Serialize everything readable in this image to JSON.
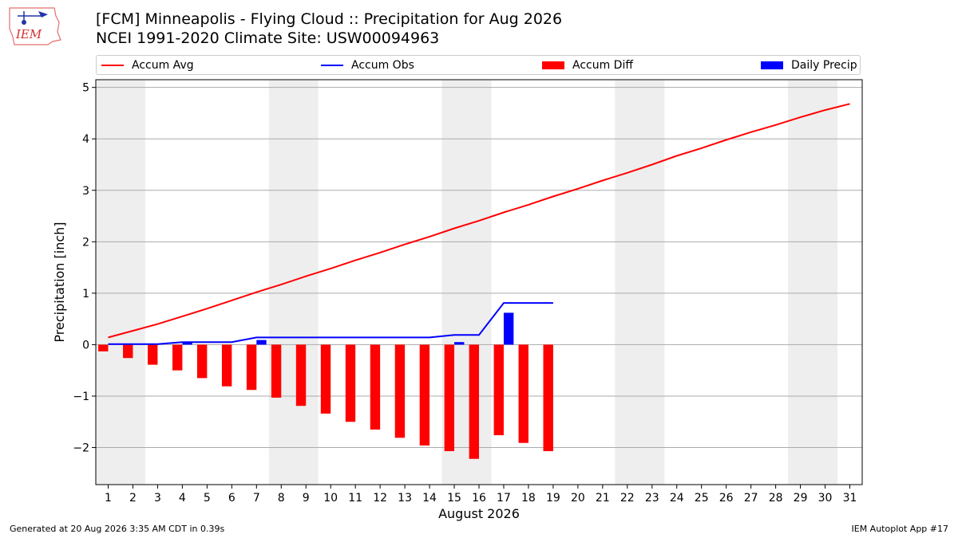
{
  "header": {
    "line1": "[FCM] Minneapolis - Flying Cloud :: Precipitation for Aug 2026",
    "line2": "NCEI 1991-2020 Climate Site: USW00094963"
  },
  "logo": {
    "text": "IEM"
  },
  "footer": {
    "left": "Generated at 20 Aug 2026 3:35 AM CDT in 0.39s",
    "right": "IEM Autoplot App #17"
  },
  "colors": {
    "avg": "#ff0000",
    "obs": "#0000ff",
    "diff": "#ff0000",
    "daily": "#0000ff",
    "weekend_band": "#eeeeee",
    "grid": "#aaaaaa"
  },
  "chart_data": {
    "type": "bar",
    "xlabel": "August 2026",
    "ylabel": "Precipitation [inch]",
    "xlim": [
      0.5,
      31.5
    ],
    "ylim": [
      -2.72,
      5.15
    ],
    "yticks": [
      -2,
      -1,
      0,
      1,
      2,
      3,
      4,
      5
    ],
    "ytick_labels": [
      "−2",
      "−1",
      "0",
      "1",
      "2",
      "3",
      "4",
      "5"
    ],
    "xticks": [
      1,
      2,
      3,
      4,
      5,
      6,
      7,
      8,
      9,
      10,
      11,
      12,
      13,
      14,
      15,
      16,
      17,
      18,
      19,
      20,
      21,
      22,
      23,
      24,
      25,
      26,
      27,
      28,
      29,
      30,
      31
    ],
    "grid": "y",
    "legend_position": "top",
    "shaded_days": [
      [
        1,
        2
      ],
      [
        8,
        9
      ],
      [
        15,
        16
      ],
      [
        22,
        23
      ],
      [
        29,
        30
      ]
    ],
    "series": [
      {
        "name": "Accum Avg",
        "kind": "line",
        "x": [
          1,
          2,
          3,
          4,
          5,
          6,
          7,
          8,
          9,
          10,
          11,
          12,
          13,
          14,
          15,
          16,
          17,
          18,
          19,
          20,
          21,
          22,
          23,
          24,
          25,
          26,
          27,
          28,
          29,
          30,
          31
        ],
        "values": [
          0.14,
          0.27,
          0.4,
          0.55,
          0.7,
          0.86,
          1.02,
          1.17,
          1.33,
          1.48,
          1.64,
          1.79,
          1.95,
          2.1,
          2.26,
          2.41,
          2.57,
          2.72,
          2.88,
          3.03,
          3.19,
          3.34,
          3.5,
          3.67,
          3.82,
          3.98,
          4.13,
          4.27,
          4.42,
          4.56,
          4.68
        ]
      },
      {
        "name": "Accum Obs",
        "kind": "line",
        "x": [
          1,
          2,
          3,
          4,
          5,
          6,
          7,
          8,
          9,
          10,
          11,
          12,
          13,
          14,
          15,
          16,
          17,
          18,
          19
        ],
        "values": [
          0.01,
          0.01,
          0.01,
          0.05,
          0.05,
          0.05,
          0.14,
          0.14,
          0.14,
          0.14,
          0.14,
          0.14,
          0.14,
          0.14,
          0.19,
          0.19,
          0.81,
          0.81,
          0.81
        ]
      },
      {
        "name": "Accum Diff",
        "kind": "bar",
        "x": [
          1,
          2,
          3,
          4,
          5,
          6,
          7,
          8,
          9,
          10,
          11,
          12,
          13,
          14,
          15,
          16,
          17,
          18,
          19
        ],
        "values": [
          -0.13,
          -0.26,
          -0.39,
          -0.5,
          -0.65,
          -0.81,
          -0.88,
          -1.03,
          -1.19,
          -1.34,
          -1.5,
          -1.65,
          -1.81,
          -1.96,
          -2.07,
          -2.22,
          -1.76,
          -1.91,
          -2.07
        ]
      },
      {
        "name": "Daily Precip",
        "kind": "bar",
        "x": [
          4,
          7,
          15,
          17
        ],
        "values": [
          0.04,
          0.09,
          0.05,
          0.62
        ]
      }
    ]
  }
}
